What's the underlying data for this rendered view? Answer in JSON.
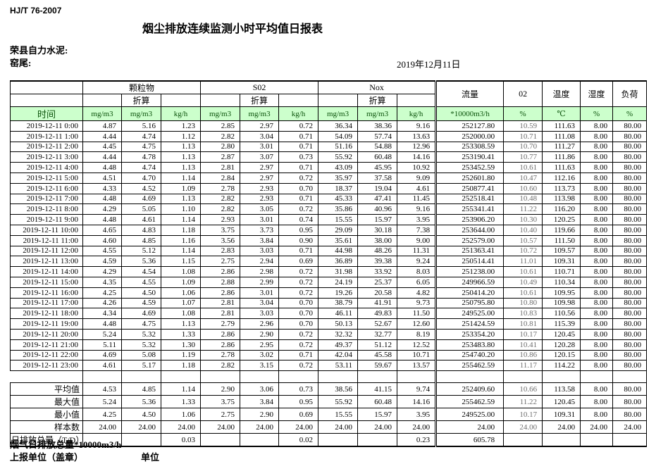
{
  "meta": {
    "standard_code": "HJ/T  76-2007",
    "title": "烟尘排放连续监测小时平均值日报表",
    "company": "荣县自力水泥:",
    "site": "窑尾:",
    "date": "2019年12月11日"
  },
  "table": {
    "time_label": "时间",
    "converted_label": "折算",
    "group_headers": {
      "pm": "颗粒物",
      "so2": "S02",
      "nox": "Nox",
      "flow": "流量",
      "o2": "02",
      "temp": "温度",
      "humidity": "湿度",
      "load": "负荷"
    },
    "units": [
      "mg/m3",
      "mg/m3",
      "kg/h",
      "mg/m3",
      "mg/m3",
      "kg/h",
      "mg/m3",
      "mg/m3",
      "kg/h",
      "*10000m3/h",
      "%",
      "℃",
      "%",
      "%"
    ],
    "rows": [
      {
        "time": "2019-12-11  0:00",
        "values": [
          "4.87",
          "5.16",
          "1.23",
          "2.85",
          "2.97",
          "0.72",
          "36.34",
          "38.36",
          "9.16",
          "252127.80",
          "10.59",
          "111.63",
          "8.00",
          "80.00"
        ]
      },
      {
        "time": "2019-12-11  1:00",
        "values": [
          "4.44",
          "4.74",
          "1.12",
          "2.82",
          "3.04",
          "0.71",
          "54.09",
          "57.74",
          "13.63",
          "252000.00",
          "10.71",
          "111.08",
          "8.00",
          "80.00"
        ]
      },
      {
        "time": "2019-12-11  2:00",
        "values": [
          "4.45",
          "4.75",
          "1.13",
          "2.80",
          "3.01",
          "0.71",
          "51.16",
          "54.88",
          "12.96",
          "253308.59",
          "10.70",
          "111.27",
          "8.00",
          "80.00"
        ]
      },
      {
        "time": "2019-12-11  3:00",
        "values": [
          "4.44",
          "4.78",
          "1.13",
          "2.87",
          "3.07",
          "0.73",
          "55.92",
          "60.48",
          "14.16",
          "253190.41",
          "10.77",
          "111.86",
          "8.00",
          "80.00"
        ]
      },
      {
        "time": "2019-12-11  4:00",
        "values": [
          "4.48",
          "4.74",
          "1.13",
          "2.81",
          "2.97",
          "0.71",
          "43.09",
          "45.95",
          "10.92",
          "253452.59",
          "10.61",
          "111.63",
          "8.00",
          "80.00"
        ]
      },
      {
        "time": "2019-12-11  5:00",
        "values": [
          "4.51",
          "4.70",
          "1.14",
          "2.84",
          "2.97",
          "0.72",
          "35.97",
          "37.58",
          "9.09",
          "252601.80",
          "10.47",
          "112.16",
          "8.00",
          "80.00"
        ]
      },
      {
        "time": "2019-12-11  6:00",
        "values": [
          "4.33",
          "4.52",
          "1.09",
          "2.78",
          "2.93",
          "0.70",
          "18.37",
          "19.04",
          "4.61",
          "250877.41",
          "10.60",
          "113.73",
          "8.00",
          "80.00"
        ]
      },
      {
        "time": "2019-12-11  7:00",
        "values": [
          "4.48",
          "4.69",
          "1.13",
          "2.82",
          "2.93",
          "0.71",
          "45.33",
          "47.41",
          "11.45",
          "252518.41",
          "10.48",
          "113.98",
          "8.00",
          "80.00"
        ]
      },
      {
        "time": "2019-12-11  8:00",
        "values": [
          "4.29",
          "5.05",
          "1.10",
          "2.82",
          "3.05",
          "0.72",
          "35.86",
          "40.96",
          "9.16",
          "255341.41",
          "11.22",
          "116.20",
          "8.00",
          "80.00"
        ]
      },
      {
        "time": "2019-12-11  9:00",
        "values": [
          "4.48",
          "4.61",
          "1.14",
          "2.93",
          "3.01",
          "0.74",
          "15.55",
          "15.97",
          "3.95",
          "253906.20",
          "10.30",
          "120.25",
          "8.00",
          "80.00"
        ]
      },
      {
        "time": "2019-12-11 10:00",
        "values": [
          "4.65",
          "4.83",
          "1.18",
          "3.75",
          "3.73",
          "0.95",
          "29.09",
          "30.18",
          "7.38",
          "253644.00",
          "10.40",
          "119.66",
          "8.00",
          "80.00"
        ]
      },
      {
        "time": "2019-12-11 11:00",
        "values": [
          "4.60",
          "4.85",
          "1.16",
          "3.56",
          "3.84",
          "0.90",
          "35.61",
          "38.00",
          "9.00",
          "252579.00",
          "10.57",
          "111.50",
          "8.00",
          "80.00"
        ]
      },
      {
        "time": "2019-12-11 12:00",
        "values": [
          "4.55",
          "5.12",
          "1.14",
          "2.83",
          "3.03",
          "0.71",
          "44.98",
          "48.26",
          "11.31",
          "251363.41",
          "10.72",
          "109.57",
          "8.00",
          "80.00"
        ]
      },
      {
        "time": "2019-12-11 13:00",
        "values": [
          "4.59",
          "5.36",
          "1.15",
          "2.75",
          "2.94",
          "0.69",
          "36.89",
          "39.38",
          "9.24",
          "250514.41",
          "11.01",
          "109.31",
          "8.00",
          "80.00"
        ]
      },
      {
        "time": "2019-12-11 14:00",
        "values": [
          "4.29",
          "4.54",
          "1.08",
          "2.86",
          "2.98",
          "0.72",
          "31.98",
          "33.92",
          "8.03",
          "251238.00",
          "10.61",
          "110.71",
          "8.00",
          "80.00"
        ]
      },
      {
        "time": "2019-12-11 15:00",
        "values": [
          "4.35",
          "4.55",
          "1.09",
          "2.88",
          "2.99",
          "0.72",
          "24.19",
          "25.37",
          "6.05",
          "249966.59",
          "10.49",
          "110.34",
          "8.00",
          "80.00"
        ]
      },
      {
        "time": "2019-12-11 16:00",
        "values": [
          "4.25",
          "4.50",
          "1.06",
          "2.86",
          "3.01",
          "0.72",
          "19.26",
          "20.58",
          "4.82",
          "250414.20",
          "10.61",
          "109.95",
          "8.00",
          "80.00"
        ]
      },
      {
        "time": "2019-12-11 17:00",
        "values": [
          "4.26",
          "4.59",
          "1.07",
          "2.81",
          "3.04",
          "0.70",
          "38.79",
          "41.91",
          "9.73",
          "250795.80",
          "10.80",
          "109.98",
          "8.00",
          "80.00"
        ]
      },
      {
        "time": "2019-12-11 18:00",
        "values": [
          "4.34",
          "4.69",
          "1.08",
          "2.81",
          "3.03",
          "0.70",
          "46.11",
          "49.83",
          "11.50",
          "249525.00",
          "10.83",
          "110.56",
          "8.00",
          "80.00"
        ]
      },
      {
        "time": "2019-12-11 19:00",
        "values": [
          "4.48",
          "4.75",
          "1.13",
          "2.79",
          "2.96",
          "0.70",
          "50.13",
          "52.67",
          "12.60",
          "251424.59",
          "10.81",
          "115.39",
          "8.00",
          "80.00"
        ]
      },
      {
        "time": "2019-12-11 20:00",
        "values": [
          "5.24",
          "5.32",
          "1.33",
          "2.86",
          "2.90",
          "0.72",
          "32.32",
          "32.77",
          "8.19",
          "253354.20",
          "10.17",
          "120.45",
          "8.00",
          "80.00"
        ]
      },
      {
        "time": "2019-12-11 21:00",
        "values": [
          "5.11",
          "5.32",
          "1.30",
          "2.86",
          "2.95",
          "0.72",
          "49.37",
          "51.12",
          "12.52",
          "253483.80",
          "10.41",
          "120.28",
          "8.00",
          "80.00"
        ]
      },
      {
        "time": "2019-12-11 22:00",
        "values": [
          "4.69",
          "5.08",
          "1.19",
          "2.78",
          "3.02",
          "0.71",
          "42.04",
          "45.58",
          "10.71",
          "254740.20",
          "10.86",
          "120.15",
          "8.00",
          "80.00"
        ]
      },
      {
        "time": "2019-12-11 23:00",
        "values": [
          "4.61",
          "5.17",
          "1.18",
          "2.82",
          "3.15",
          "0.72",
          "53.11",
          "59.67",
          "13.57",
          "255462.59",
          "11.17",
          "114.22",
          "8.00",
          "80.00"
        ]
      }
    ],
    "summary": [
      {
        "label": "平均值",
        "values": [
          "4.53",
          "4.85",
          "1.14",
          "2.90",
          "3.06",
          "0.73",
          "38.56",
          "41.15",
          "9.74",
          "252409.60",
          "10.66",
          "113.58",
          "8.00",
          "80.00"
        ]
      },
      {
        "label": "最大值",
        "values": [
          "5.24",
          "5.36",
          "1.33",
          "3.75",
          "3.84",
          "0.95",
          "55.92",
          "60.48",
          "14.16",
          "255462.59",
          "11.22",
          "120.45",
          "8.00",
          "80.00"
        ]
      },
      {
        "label": "最小值",
        "values": [
          "4.25",
          "4.50",
          "1.06",
          "2.75",
          "2.90",
          "0.69",
          "15.55",
          "15.97",
          "3.95",
          "249525.00",
          "10.17",
          "109.31",
          "8.00",
          "80.00"
        ]
      },
      {
        "label": "样本数",
        "values": [
          "24.00",
          "24.00",
          "24.00",
          "24.00",
          "24.00",
          "24.00",
          "24.00",
          "24.00",
          "24.00",
          "24.00",
          "24.00",
          "24.00",
          "24.00",
          "24.00"
        ]
      },
      {
        "label": "日排放总量（T/D）",
        "values": [
          "",
          "",
          "0.03",
          "",
          "",
          "0.02",
          "",
          "",
          "0.23",
          "605.78",
          "",
          "",
          "",
          ""
        ]
      }
    ]
  },
  "footer": {
    "flow_note": "烟气日排放总量*10000m3/h",
    "report_org_label": "上报单位（盖章）",
    "unit_label": "单位"
  }
}
